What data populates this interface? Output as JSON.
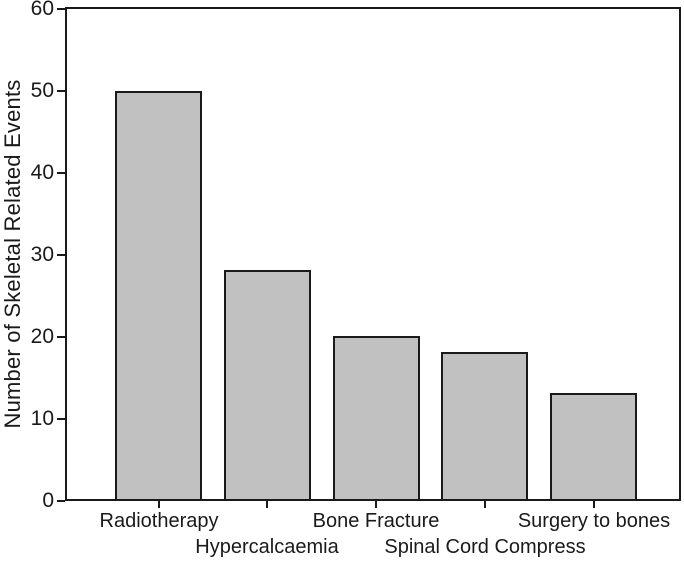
{
  "chart_data": {
    "type": "bar",
    "title": "",
    "xlabel": "",
    "ylabel": "Number of Skeletal Related Events",
    "categories": [
      "Radiotherapy",
      "Hypercalcaemia",
      "Bone Fracture",
      "Spinal Cord Compress",
      "Surgery to bones"
    ],
    "values": [
      50,
      28,
      20,
      18,
      13
    ],
    "ylim": [
      0,
      60
    ],
    "yticks": [
      0,
      10,
      20,
      30,
      40,
      50,
      60
    ],
    "grid": false,
    "legend": "none",
    "plot_frame": "full-box",
    "xlabel_layout": "staggered-two-rows",
    "bar_fill_color": "#c1c1c1",
    "bar_border_color": "#1a1a1a",
    "axis_color": "#1a1a1a",
    "background_color": "#ffffff"
  }
}
